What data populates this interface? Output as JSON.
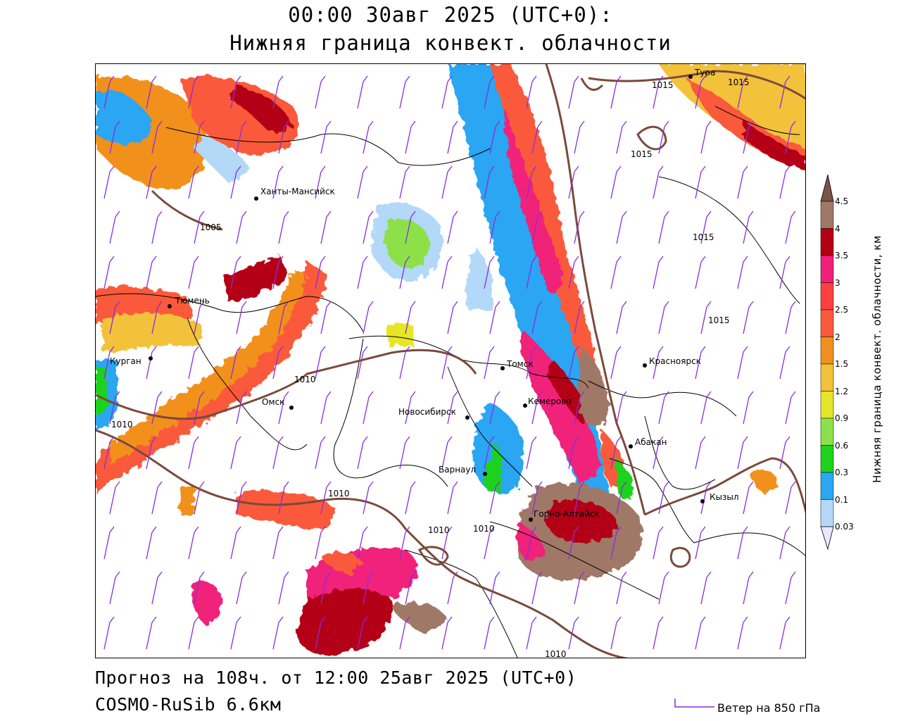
{
  "header": {
    "line1": "00:00 30авг 2025 (UTC+0):",
    "line2": "Нижняя граница конвект. облачности"
  },
  "footer": {
    "forecast": "Прогноз на 108ч. от 12:00 25авг 2025 (UTC+0)",
    "model": "COSMO-RuSib 6.6км",
    "wind_legend": "Ветер на 850 гПа"
  },
  "legend": {
    "title": "Нижняя граница конвект. облачности, км",
    "ticks": [
      "0.03",
      "0.1",
      "0.3",
      "0.6",
      "0.9",
      "1.2",
      "1.5",
      "2",
      "2.5",
      "3",
      "3.5",
      "4",
      "4.5"
    ],
    "colors": [
      "#e8e8ff",
      "#b4d8f8",
      "#2aa6f2",
      "#1ed21e",
      "#8ee04a",
      "#e6e628",
      "#f2c23a",
      "#f2901e",
      "#fa5a3a",
      "#fc4040",
      "#f0207a",
      "#b40014",
      "#a07868",
      "#7a5448"
    ]
  },
  "cities": [
    {
      "name": "Тура"
    },
    {
      "name": "Ханты-Мансийск"
    },
    {
      "name": "Тюмень"
    },
    {
      "name": "Курган"
    },
    {
      "name": "Омск"
    },
    {
      "name": "Новосибирск"
    },
    {
      "name": "Томск"
    },
    {
      "name": "Кемерово"
    },
    {
      "name": "Красноярск"
    },
    {
      "name": "Абакан"
    },
    {
      "name": "Барнаул"
    },
    {
      "name": "Горно-Алтайск"
    },
    {
      "name": "Кызыл"
    }
  ],
  "isobars": [
    {
      "value": "1015"
    },
    {
      "value": "1015"
    },
    {
      "value": "1015"
    },
    {
      "value": "1015"
    },
    {
      "value": "1015"
    },
    {
      "value": "1005"
    },
    {
      "value": "1010"
    },
    {
      "value": "1010"
    },
    {
      "value": "1010"
    },
    {
      "value": "1010"
    },
    {
      "value": "1010"
    },
    {
      "value": "1010"
    }
  ],
  "colors": {
    "isobar": "#7a4a3a",
    "wind_barb": "#8a2be2",
    "border": "#000000"
  }
}
